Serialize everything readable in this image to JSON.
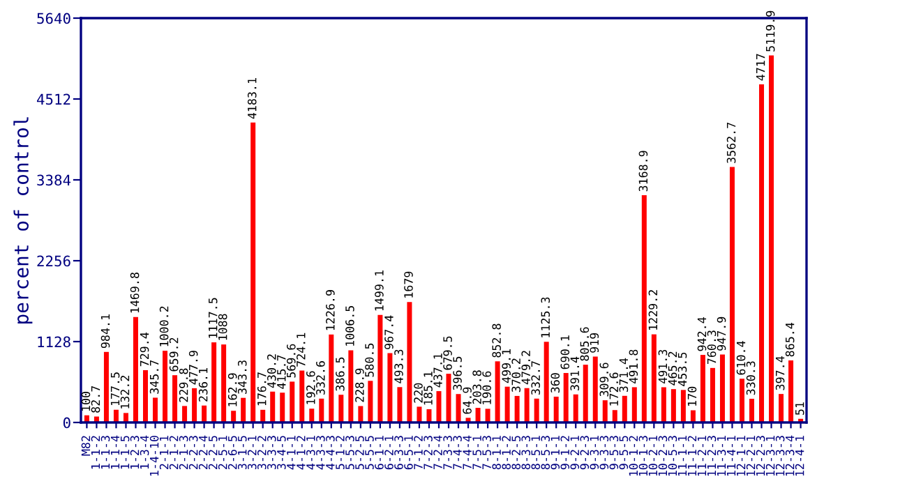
{
  "chart_data": {
    "type": "bar",
    "ylabel": "percent of control",
    "categories": [
      "M82",
      "1-1-2",
      "1-1-3",
      "1-1-4",
      "1-1-5",
      "1-2-3",
      "1-3-4",
      "1-4-10",
      "2-1-1",
      "2-1-2",
      "2-1-3",
      "2-2-3",
      "2-2-4",
      "2-2-5",
      "2-5-1",
      "2-6-5",
      "3-1-5",
      "3-2-1",
      "3-2-2",
      "3-3-3",
      "3-4-5",
      "4-1-1",
      "4-1-2",
      "4-3-1",
      "4-3-3",
      "4-4-3",
      "5-1-2",
      "5-5-3",
      "5-2-5",
      "5-5-5",
      "6-1-1",
      "6-2-1",
      "6-3-3",
      "6-5-1",
      "7-1-2",
      "7-2-3",
      "7-2-4",
      "7-3-3",
      "7-4-3",
      "7-4-4",
      "7-5-1",
      "7-5-3",
      "8-1-1",
      "8-1-2",
      "8-2-5",
      "8-3-3",
      "8-5-1",
      "8-5-3",
      "9-1-1",
      "9-1-2",
      "9-2-1",
      "9-2-3",
      "9-3-1",
      "9-3-3",
      "9-5-3",
      "9-5-5",
      "10-1-2",
      "10-1-3",
      "10-2-1",
      "10-2-3",
      "10-5-3",
      "11-1-1",
      "11-1-2",
      "11-2-1",
      "11-2-3",
      "11-3-1",
      "11-4-1",
      "12-1-1",
      "12-2-1",
      "12-2-3",
      "12-3-1",
      "12-3-3",
      "12-3-4",
      "12-4-1"
    ],
    "values": [
      100,
      82.7,
      984.1,
      177.5,
      132.2,
      1469.8,
      729.4,
      345.7,
      1000.2,
      659.2,
      229.8,
      477.9,
      236.1,
      1117.5,
      1088,
      162.9,
      343.3,
      4183.1,
      176.7,
      430.2,
      415.7,
      569.6,
      724.1,
      192.6,
      332.6,
      1226.9,
      386.5,
      1006.5,
      228.9,
      580.5,
      1499.1,
      967.4,
      493.3,
      1679,
      220,
      185.1,
      437.1,
      679.5,
      396.5,
      64.9,
      203.8,
      190.6,
      852.8,
      499.1,
      370.2,
      479.2,
      332.7,
      1125.3,
      360,
      690.1,
      391.4,
      805.6,
      919,
      309.6,
      172.6,
      371.4,
      491.8,
      3168.9,
      1229.2,
      491.3,
      465.2,
      453.5,
      170,
      942.4,
      760.3,
      947.9,
      3562.7,
      610.4,
      330.3,
      4717,
      5119.9,
      397.4,
      865.4,
      51
    ],
    "color": "#ff0000",
    "ylim": [
      0,
      5640
    ],
    "yticks": [
      0,
      1128,
      2256,
      3384,
      4512,
      5640
    ],
    "data_labels": true
  }
}
